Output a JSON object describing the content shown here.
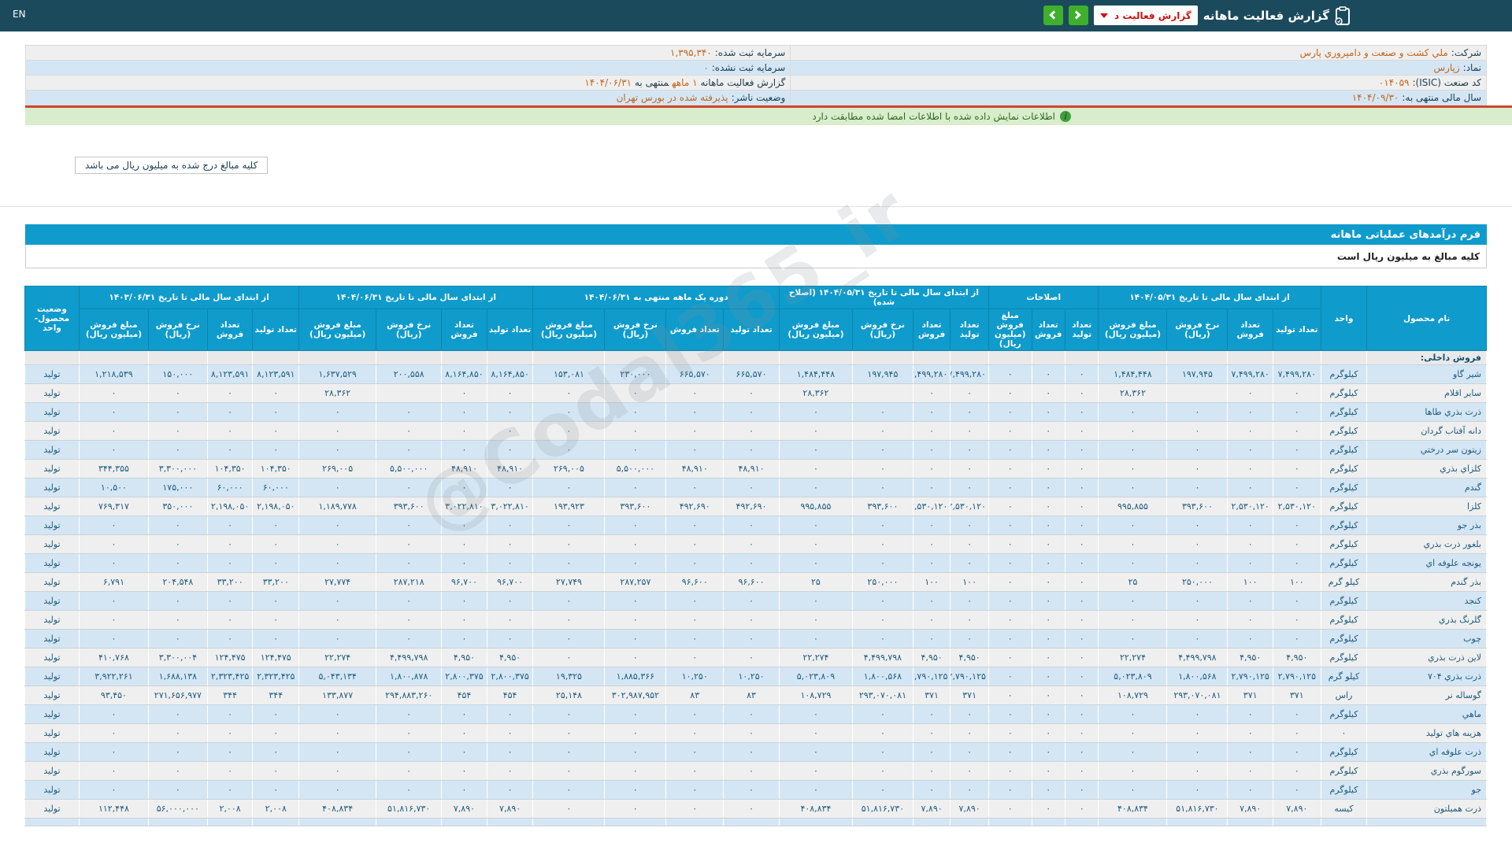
{
  "colors": {
    "topbar_bg": "#1b4a5c",
    "accent_cyan": "#0f9bcb",
    "button_green": "#3fb02c",
    "row_blue": "#d4e6f4",
    "row_gray": "#efefef",
    "value_orange": "#c2661d",
    "notice_green_bg": "#d8edcb",
    "red_divider": "#cf4631"
  },
  "header_bar": {
    "title": "گزارش فعالیت ماهانه",
    "dropdown_label": "گزارش فعالیت د",
    "lang_toggle": "EN",
    "icons": [
      "clipboard-icon",
      "chevron-right-icon",
      "chevron-left-icon",
      "caret-down-icon"
    ]
  },
  "company_info": {
    "right_column": [
      {
        "label": "شرکت:",
        "value": "ملي کشت و صنعت و دامپروري پارس"
      },
      {
        "label": "نماد:",
        "value": "زپارس"
      },
      {
        "label": "کد صنعت (ISIC):",
        "value": "۰۱۴۰۵۹"
      },
      {
        "label": "سال مالی منتهی به:",
        "value": "۱۴۰۴/۰۹/۳۰"
      }
    ],
    "left_column": [
      {
        "label": "سرمایه ثبت شده:",
        "value": "۱,۳۹۵,۳۴۰"
      },
      {
        "label": "سرمایه ثبت نشده:",
        "value": "۰"
      },
      {
        "label": "گزارش فعالیت ماهانه",
        "value": "۱ ماهه",
        "label2": "منتهی به",
        "value2": "۱۴۰۴/۰۶/۳۱"
      },
      {
        "label": "وضعیت ناشر:",
        "value": "پذیرفته شده در بورس تهران"
      }
    ]
  },
  "signature_notice": "اطلاعات نمایش داده شده با اطلاعات امضا شده مطابقت دارد",
  "amounts_note_box": "کلیه مبالغ درج شده به میلیون ریال می باشد",
  "form_title": "فرم درآمدهای عملیاتی ماهانه",
  "amounts_note_row": "کلیه مبالغ به میلیون ریال است",
  "watermark": "@Codal365_ir",
  "table": {
    "header": {
      "product": "نام محصول",
      "unit": "واحد",
      "status": "وضعیت محصول- واحد"
    },
    "col_labels": {
      "qty_produced": "تعداد تولید",
      "qty_sold": "تعداد فروش",
      "rate": "نرخ فروش (ریال)",
      "amount": "مبلغ فروش (میلیون ریال)"
    },
    "groups": [
      {
        "key": "g0531",
        "title": "از ابتدای سال مالی تا تاریخ ۱۴۰۴/۰۵/۳۱",
        "cols": [
          "qty_produced",
          "qty_sold",
          "rate",
          "amount"
        ]
      },
      {
        "key": "corrections",
        "title": "اصلاحات",
        "cols": [
          "qty_produced",
          "qty_sold",
          "amount"
        ]
      },
      {
        "key": "g0531_adjusted",
        "title": "از ابتدای سال مالی تا تاریخ ۱۴۰۴/۰۵/۳۱ (اصلاح شده)",
        "cols": [
          "qty_produced",
          "qty_sold",
          "rate",
          "amount"
        ]
      },
      {
        "key": "period_1month",
        "title": "دوره یک ماهه منتهی به ۱۴۰۴/۰۶/۳۱",
        "cols": [
          "qty_produced",
          "qty_sold",
          "rate",
          "amount"
        ]
      },
      {
        "key": "ytd_0631",
        "title": "از ابتدای سال مالی تا تاریخ ۱۴۰۴/۰۶/۳۱",
        "cols": [
          "qty_produced",
          "qty_sold",
          "rate",
          "amount"
        ]
      },
      {
        "key": "prev_year_0631",
        "title": "از ابتدای سال مالی تا تاریخ ۱۴۰۳/۰۶/۳۱",
        "cols": [
          "qty_produced",
          "qty_sold",
          "rate",
          "amount"
        ]
      }
    ],
    "rows": [
      {
        "section": "فروش داخلی:"
      },
      {
        "name": "شیر گاو",
        "unit": "کیلوگرم",
        "status": "تولید",
        "v": [
          "۷,۴۹۹,۲۸۰",
          "۷,۴۹۹,۲۸۰",
          "۱۹۷,۹۴۵",
          "۱,۴۸۴,۴۴۸",
          "۰",
          "۰",
          "۰",
          "۷,۴۹۹,۲۸۰",
          "۷,۴۹۹,۲۸۰",
          "۱۹۷,۹۴۵",
          "۱,۴۸۴,۴۴۸",
          "۶۶۵,۵۷۰",
          "۶۶۵,۵۷۰",
          "۲۳۰,۰۰۰",
          "۱۵۳,۰۸۱",
          "۸,۱۶۴,۸۵۰",
          "۸,۱۶۴,۸۵۰",
          "۲۰۰,۵۵۸",
          "۱,۶۳۷,۵۲۹",
          "۸,۱۲۳,۵۹۱",
          "۸,۱۲۳,۵۹۱",
          "۱۵۰,۰۰۰",
          "۱,۲۱۸,۵۳۹"
        ]
      },
      {
        "name": "سایر اقلام",
        "unit": "کیلوگرم",
        "status": "تولید",
        "v": [
          "۰",
          "۰",
          "",
          "۲۸,۳۶۲",
          "۰",
          "۰",
          "۰",
          "۰",
          "۰",
          "",
          "۲۸,۳۶۲",
          "۰",
          "۰",
          "۰",
          "۰",
          "۰",
          "۰",
          "",
          "۲۸,۳۶۲",
          "۰",
          "۰",
          "۰",
          "۰"
        ]
      },
      {
        "name": "ذرت بذري طاها",
        "unit": "کیلوگرم",
        "status": "تولید",
        "v": [
          "۰",
          "۰",
          "۰",
          "۰",
          "۰",
          "۰",
          "۰",
          "۰",
          "۰",
          "۰",
          "۰",
          "۰",
          "۰",
          "۰",
          "۰",
          "۰",
          "۰",
          "۰",
          "۰",
          "۰",
          "۰",
          "۰",
          "۰"
        ]
      },
      {
        "name": "دانه آفتاب گردان",
        "unit": "کیلوگرم",
        "status": "تولید",
        "v": [
          "۰",
          "۰",
          "۰",
          "۰",
          "۰",
          "۰",
          "۰",
          "۰",
          "۰",
          "۰",
          "۰",
          "۰",
          "۰",
          "۰",
          "۰",
          "۰",
          "۰",
          "۰",
          "۰",
          "۰",
          "۰",
          "۰",
          "۰"
        ]
      },
      {
        "name": "زیتون سر درختي",
        "unit": "کیلوگرم",
        "status": "تولید",
        "v": [
          "۰",
          "۰",
          "۰",
          "۰",
          "۰",
          "۰",
          "۰",
          "۰",
          "۰",
          "۰",
          "۰",
          "۰",
          "۰",
          "۰",
          "۰",
          "۰",
          "۰",
          "۰",
          "۰",
          "۰",
          "۰",
          "۰",
          "۰"
        ]
      },
      {
        "name": "کلزاي بذري",
        "unit": "کیلوگرم",
        "status": "تولید",
        "v": [
          "۰",
          "۰",
          "۰",
          "۰",
          "۰",
          "۰",
          "۰",
          "۰",
          "۰",
          "۰",
          "۰",
          "۴۸,۹۱۰",
          "۴۸,۹۱۰",
          "۵,۵۰۰,۰۰۰",
          "۲۶۹,۰۰۵",
          "۴۸,۹۱۰",
          "۴۸,۹۱۰",
          "۵,۵۰۰,۰۰۰",
          "۲۶۹,۰۰۵",
          "۱۰۴,۳۵۰",
          "۱۰۴,۳۵۰",
          "۳,۳۰۰,۰۰۰",
          "۳۴۴,۳۵۵"
        ]
      },
      {
        "name": "گندم",
        "unit": "کیلوگرم",
        "status": "تولید",
        "v": [
          "۰",
          "۰",
          "۰",
          "۰",
          "۰",
          "۰",
          "۰",
          "۰",
          "۰",
          "۰",
          "۰",
          "۰",
          "۰",
          "۰",
          "۰",
          "۰",
          "۰",
          "۰",
          "۰",
          "۶۰,۰۰۰",
          "۶۰,۰۰۰",
          "۱۷۵,۰۰۰",
          "۱۰,۵۰۰"
        ]
      },
      {
        "name": "کلزا",
        "unit": "کیلوگرم",
        "status": "تولید",
        "v": [
          "۲,۵۳۰,۱۲۰",
          "۲,۵۳۰,۱۲۰",
          "۳۹۳,۶۰۰",
          "۹۹۵,۸۵۵",
          "۰",
          "۰",
          "۰",
          "۲,۵۳۰,۱۲۰",
          "۲,۵۳۰,۱۲۰",
          "۳۹۳,۶۰۰",
          "۹۹۵,۸۵۵",
          "۴۹۲,۶۹۰",
          "۴۹۲,۶۹۰",
          "۳۹۳,۶۰۰",
          "۱۹۳,۹۲۳",
          "۳,۰۲۲,۸۱۰",
          "۳,۰۲۲,۸۱۰",
          "۳۹۳,۶۰۰",
          "۱,۱۸۹,۷۷۸",
          "۲,۱۹۸,۰۵۰",
          "۲,۱۹۸,۰۵۰",
          "۳۵۰,۰۰۰",
          "۷۶۹,۳۱۷"
        ]
      },
      {
        "name": "بذر جو",
        "unit": "کیلوگرم",
        "status": "تولید",
        "v": [
          "۰",
          "۰",
          "۰",
          "۰",
          "۰",
          "۰",
          "۰",
          "۰",
          "۰",
          "۰",
          "۰",
          "۰",
          "۰",
          "۰",
          "۰",
          "۰",
          "۰",
          "۰",
          "۰",
          "۰",
          "۰",
          "۰",
          "۰"
        ]
      },
      {
        "name": "بلغور ذرت بذري",
        "unit": "کیلوگرم",
        "status": "تولید",
        "v": [
          "۰",
          "۰",
          "۰",
          "۰",
          "۰",
          "۰",
          "۰",
          "۰",
          "۰",
          "۰",
          "۰",
          "۰",
          "۰",
          "۰",
          "۰",
          "۰",
          "۰",
          "۰",
          "۰",
          "۰",
          "۰",
          "۰",
          "۰"
        ]
      },
      {
        "name": "یونجه علوفه اي",
        "unit": "کیلوگرم",
        "status": "تولید",
        "v": [
          "۰",
          "۰",
          "۰",
          "۰",
          "۰",
          "۰",
          "۰",
          "۰",
          "۰",
          "۰",
          "۰",
          "۰",
          "۰",
          "۰",
          "۰",
          "۰",
          "۰",
          "۰",
          "۰",
          "۰",
          "۰",
          "۰",
          "۰"
        ]
      },
      {
        "name": "بذر گندم",
        "unit": "کیلو گرم",
        "status": "تولید",
        "v": [
          "۱۰۰",
          "۱۰۰",
          "۲۵۰,۰۰۰",
          "۲۵",
          "۰",
          "۰",
          "۰",
          "۱۰۰",
          "۱۰۰",
          "۲۵۰,۰۰۰",
          "۲۵",
          "۹۶,۶۰۰",
          "۹۶,۶۰۰",
          "۲۸۷,۲۵۷",
          "۲۷,۷۴۹",
          "۹۶,۷۰۰",
          "۹۶,۷۰۰",
          "۲۸۷,۲۱۸",
          "۲۷,۷۷۴",
          "۳۳,۲۰۰",
          "۳۳,۲۰۰",
          "۲۰۴,۵۴۸",
          "۶,۷۹۱"
        ]
      },
      {
        "name": "کنجد",
        "unit": "کیلوگرم",
        "status": "تولید",
        "v": [
          "۰",
          "۰",
          "۰",
          "۰",
          "۰",
          "۰",
          "۰",
          "۰",
          "۰",
          "۰",
          "۰",
          "۰",
          "۰",
          "۰",
          "۰",
          "۰",
          "۰",
          "۰",
          "۰",
          "۰",
          "۰",
          "۰",
          "۰"
        ]
      },
      {
        "name": "گلرنگ بذري",
        "unit": "کیلوگرم",
        "status": "تولید",
        "v": [
          "۰",
          "۰",
          "۰",
          "۰",
          "۰",
          "۰",
          "۰",
          "۰",
          "۰",
          "۰",
          "۰",
          "۰",
          "۰",
          "۰",
          "۰",
          "۰",
          "۰",
          "۰",
          "۰",
          "۰",
          "۰",
          "۰",
          "۰"
        ]
      },
      {
        "name": "چوب",
        "unit": "کیلوگرم",
        "status": "تولید",
        "v": [
          "۰",
          "۰",
          "۰",
          "۰",
          "۰",
          "۰",
          "۰",
          "۰",
          "۰",
          "۰",
          "۰",
          "۰",
          "۰",
          "۰",
          "۰",
          "۰",
          "۰",
          "۰",
          "۰",
          "۰",
          "۰",
          "۰",
          "۰"
        ]
      },
      {
        "name": "لاین ذرت بذري",
        "unit": "کیلوگرم",
        "status": "تولید",
        "v": [
          "۴,۹۵۰",
          "۴,۹۵۰",
          "۴,۴۹۹,۷۹۸",
          "۲۲,۲۷۴",
          "۰",
          "۰",
          "۰",
          "۴,۹۵۰",
          "۴,۹۵۰",
          "۴,۴۹۹,۷۹۸",
          "۲۲,۲۷۴",
          "۰",
          "۰",
          "۰",
          "۰",
          "۴,۹۵۰",
          "۴,۹۵۰",
          "۴,۴۹۹,۷۹۸",
          "۲۲,۲۷۴",
          "۱۲۴,۴۷۵",
          "۱۲۴,۴۷۵",
          "۳,۳۰۰,۰۰۴",
          "۴۱۰,۷۶۸"
        ]
      },
      {
        "name": "ذرت بذري ۷۰۴",
        "unit": "کیلو گرم",
        "status": "تولید",
        "v": [
          "۲,۷۹۰,۱۲۵",
          "۲,۷۹۰,۱۲۵",
          "۱,۸۰۰,۵۶۸",
          "۵,۰۲۳,۸۰۹",
          "۰",
          "۰",
          "۰",
          "۲,۷۹۰,۱۲۵",
          "۲,۷۹۰,۱۲۵",
          "۱,۸۰۰,۵۶۸",
          "۵,۰۲۳,۸۰۹",
          "۱۰,۲۵۰",
          "۱۰,۲۵۰",
          "۱,۸۸۵,۳۶۶",
          "۱۹,۳۲۵",
          "۲,۸۰۰,۳۷۵",
          "۲,۸۰۰,۳۷۵",
          "۱,۸۰۰,۸۷۸",
          "۵,۰۴۳,۱۳۴",
          "۲,۳۲۳,۴۲۵",
          "۲,۳۲۳,۴۲۵",
          "۱,۶۸۸,۱۳۸",
          "۳,۹۲۲,۲۶۱"
        ]
      },
      {
        "name": "گوساله نر",
        "unit": "راس",
        "status": "تولید",
        "v": [
          "۳۷۱",
          "۳۷۱",
          "۲۹۳,۰۷۰,۰۸۱",
          "۱۰۸,۷۲۹",
          "۰",
          "۰",
          "۰",
          "۳۷۱",
          "۳۷۱",
          "۲۹۳,۰۷۰,۰۸۱",
          "۱۰۸,۷۲۹",
          "۸۳",
          "۸۳",
          "۳۰۲,۹۸۷,۹۵۲",
          "۲۵,۱۴۸",
          "۴۵۴",
          "۴۵۴",
          "۲۹۴,۸۸۳,۲۶۰",
          "۱۳۳,۸۷۷",
          "۳۴۴",
          "۳۴۴",
          "۲۷۱,۶۵۶,۹۷۷",
          "۹۳,۴۵۰"
        ]
      },
      {
        "name": "ماهي",
        "unit": "کیلوگرم",
        "status": "تولید",
        "v": [
          "۰",
          "۰",
          "۰",
          "۰",
          "۰",
          "۰",
          "۰",
          "۰",
          "۰",
          "۰",
          "۰",
          "۰",
          "۰",
          "۰",
          "۰",
          "۰",
          "۰",
          "۰",
          "۰",
          "۰",
          "۰",
          "۰",
          "۰"
        ]
      },
      {
        "name": "هزینه هاي تولید",
        "unit": "۰",
        "status": "تولید",
        "v": [
          "۰",
          "۰",
          "۰",
          "۰",
          "۰",
          "۰",
          "۰",
          "۰",
          "۰",
          "۰",
          "۰",
          "۰",
          "۰",
          "۰",
          "۰",
          "۰",
          "۰",
          "۰",
          "۰",
          "۰",
          "۰",
          "۰",
          "۰"
        ]
      },
      {
        "name": "ذرت علوفه اي",
        "unit": "کیلوگرم",
        "status": "تولید",
        "v": [
          "۰",
          "۰",
          "۰",
          "۰",
          "۰",
          "۰",
          "۰",
          "۰",
          "۰",
          "۰",
          "۰",
          "۰",
          "۰",
          "۰",
          "۰",
          "۰",
          "۰",
          "۰",
          "۰",
          "۰",
          "۰",
          "۰",
          "۰"
        ]
      },
      {
        "name": "سورگوم بذري",
        "unit": "کیلوگرم",
        "status": "تولید",
        "v": [
          "۰",
          "۰",
          "۰",
          "۰",
          "۰",
          "۰",
          "۰",
          "۰",
          "۰",
          "۰",
          "۰",
          "۰",
          "۰",
          "۰",
          "۰",
          "۰",
          "۰",
          "۰",
          "۰",
          "۰",
          "۰",
          "۰",
          "۰"
        ]
      },
      {
        "name": "جو",
        "unit": "کیلوگرم",
        "status": "تولید",
        "v": [
          "۰",
          "۰",
          "۰",
          "۰",
          "۰",
          "۰",
          "۰",
          "۰",
          "۰",
          "۰",
          "۰",
          "۰",
          "۰",
          "۰",
          "۰",
          "۰",
          "۰",
          "۰",
          "۰",
          "۰",
          "۰",
          "۰",
          "۰"
        ]
      },
      {
        "name": "ذرت همیلتون",
        "unit": "کیسه",
        "status": "تولید",
        "v": [
          "۷,۸۹۰",
          "۷,۸۹۰",
          "۵۱,۸۱۶,۷۳۰",
          "۴۰۸,۸۳۴",
          "۰",
          "۰",
          "۰",
          "۷,۸۹۰",
          "۷,۸۹۰",
          "۵۱,۸۱۶,۷۳۰",
          "۴۰۸,۸۳۴",
          "۰",
          "۰",
          "۰",
          "۰",
          "۷,۸۹۰",
          "۷,۸۹۰",
          "۵۱,۸۱۶,۷۳۰",
          "۴۰۸,۸۳۴",
          "۲,۰۰۸",
          "۲,۰۰۸",
          "۵۶,۰۰۰,۰۰۰",
          "۱۱۲,۴۴۸"
        ]
      },
      {
        "partial": true,
        "name": "",
        "unit": "",
        "status": "",
        "v": [
          "",
          "",
          "",
          "",
          "",
          "",
          "",
          "",
          "",
          "",
          "",
          "",
          "",
          "",
          "",
          "",
          "",
          "",
          "",
          "",
          "",
          "",
          ""
        ]
      }
    ]
  }
}
